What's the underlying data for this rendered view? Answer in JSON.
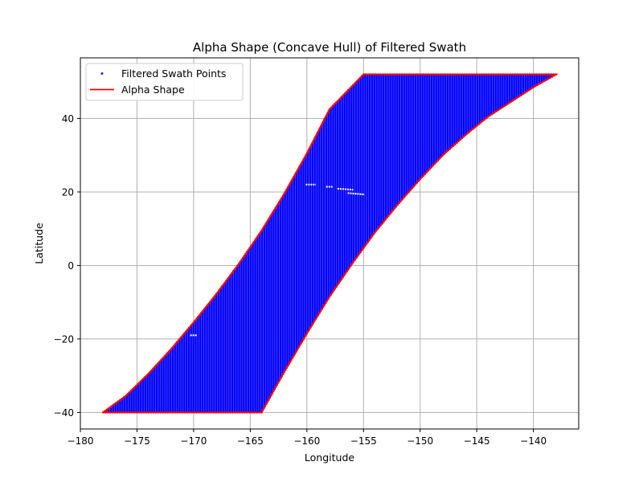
{
  "chart_data": {
    "type": "scatter",
    "title": "Alpha Shape (Concave Hull) of Filtered Swath",
    "xlabel": "Longitude",
    "ylabel": "Latitude",
    "xlim": [
      -180,
      -136
    ],
    "ylim": [
      -44.5,
      56.5
    ],
    "xticks": [
      -180,
      -175,
      -170,
      -165,
      -160,
      -155,
      -150,
      -145,
      -140
    ],
    "yticks": [
      -40,
      -20,
      0,
      20,
      40
    ],
    "grid": true,
    "legend_position": "top-left",
    "series": [
      {
        "name": "Filtered Swath Points",
        "kind": "scatter",
        "color": "#0000ff",
        "description_points": "dense grid of points filling the swath"
      },
      {
        "name": "Alpha Shape",
        "kind": "line",
        "color": "#ff0000",
        "polygon": [
          [
            -178,
            -40
          ],
          [
            -176,
            -35.5
          ],
          [
            -174,
            -29.5
          ],
          [
            -172,
            -22.8
          ],
          [
            -170,
            -15.5
          ],
          [
            -168,
            -7.8
          ],
          [
            -166,
            0.5
          ],
          [
            -164,
            9.5
          ],
          [
            -162,
            19.5
          ],
          [
            -160,
            30.5
          ],
          [
            -158,
            42.5
          ],
          [
            -155,
            52
          ],
          [
            -138,
            52
          ],
          [
            -140,
            48.5
          ],
          [
            -142,
            44.5
          ],
          [
            -144,
            40.5
          ],
          [
            -146,
            35.5
          ],
          [
            -148,
            30
          ],
          [
            -150,
            23.5
          ],
          [
            -152,
            16.5
          ],
          [
            -154,
            9
          ],
          [
            -156,
            0.5
          ],
          [
            -158,
            -8.5
          ],
          [
            -160,
            -18.5
          ],
          [
            -162,
            -29
          ],
          [
            -164,
            -40
          ],
          [
            -178,
            -40
          ]
        ]
      }
    ],
    "tick_labels_x": [
      "−180",
      "−175",
      "−170",
      "−165",
      "−160",
      "−155",
      "−150",
      "−145",
      "−140"
    ],
    "tick_labels_y": [
      "−40",
      "−20",
      "0",
      "20",
      "40"
    ]
  },
  "colors": {
    "points": "#0000ff",
    "hull": "#ff0000",
    "grid": "#b0b0b0"
  }
}
